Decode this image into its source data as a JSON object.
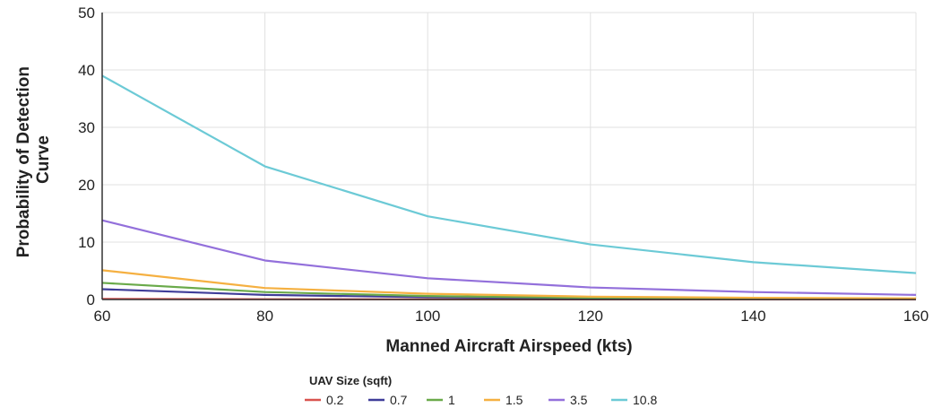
{
  "chart_data": {
    "type": "line",
    "xlabel": "Manned Aircraft Airspeed (kts)",
    "ylabel": [
      "Probability of Detection",
      "Curve"
    ],
    "x": [
      60,
      80,
      100,
      120,
      140,
      160
    ],
    "xlim": [
      60,
      160
    ],
    "ylim": [
      0,
      50
    ],
    "x_ticks": [
      "60",
      "80",
      "100",
      "120",
      "140",
      "160"
    ],
    "y_ticks": [
      "0",
      "10",
      "20",
      "30",
      "40",
      "50"
    ],
    "grid": true,
    "legend_title": "UAV Size (sqft)",
    "legend_position": "bottom",
    "series": [
      {
        "name": "0.2",
        "color": "#d9534f",
        "values": [
          0.1,
          0.05,
          0.03,
          0.02,
          0.01,
          0.01
        ]
      },
      {
        "name": "0.7",
        "color": "#3f3d99",
        "values": [
          1.8,
          0.8,
          0.4,
          0.2,
          0.1,
          0.1
        ]
      },
      {
        "name": "1",
        "color": "#6aaa4a",
        "values": [
          2.9,
          1.3,
          0.6,
          0.3,
          0.2,
          0.1
        ]
      },
      {
        "name": "1.5",
        "color": "#f5b041",
        "values": [
          5.1,
          2.0,
          1.0,
          0.5,
          0.3,
          0.2
        ]
      },
      {
        "name": "3.5",
        "color": "#9370db",
        "values": [
          13.8,
          6.8,
          3.7,
          2.1,
          1.3,
          0.8
        ]
      },
      {
        "name": "10.8",
        "color": "#6ccad6",
        "values": [
          39.0,
          23.2,
          14.5,
          9.6,
          6.5,
          4.6
        ]
      }
    ]
  }
}
